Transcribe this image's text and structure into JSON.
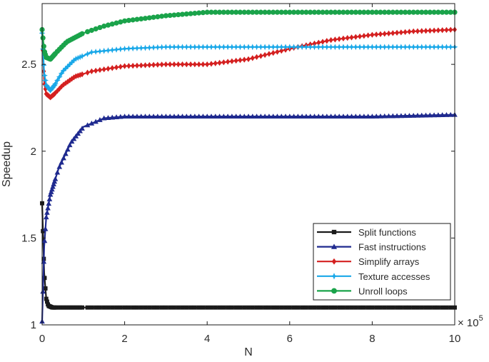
{
  "chart_data": {
    "type": "line",
    "xlabel": "N",
    "ylabel": "Speedup",
    "x_exponent_label": "× 10",
    "x_exponent_power": "5",
    "xlim": [
      0,
      10
    ],
    "ylim": [
      1,
      2.85
    ],
    "xticks": [
      0,
      2,
      4,
      6,
      8,
      10
    ],
    "yticks": [
      1,
      1.5,
      2,
      2.5
    ],
    "xtick_labels": [
      "0",
      "2",
      "4",
      "6",
      "8",
      "10"
    ],
    "ytick_labels": [
      "1",
      "1.5",
      "2",
      "2.5"
    ],
    "legend_position": "lower-right",
    "series": [
      {
        "name": "Split functions",
        "color": "#1a1a1a",
        "marker": "square",
        "x": [
          0,
          0.05,
          0.1,
          0.15,
          0.25,
          0.5,
          1,
          2,
          4,
          6,
          8,
          10
        ],
        "y": [
          1.7,
          1.3,
          1.15,
          1.11,
          1.1,
          1.1,
          1.1,
          1.1,
          1.1,
          1.1,
          1.1,
          1.1
        ]
      },
      {
        "name": "Fast instructions",
        "color": "#1f2a8f",
        "marker": "triangle",
        "x": [
          0,
          0.05,
          0.1,
          0.2,
          0.4,
          0.7,
          1,
          1.5,
          2,
          3,
          4,
          6,
          8,
          10
        ],
        "y": [
          1.02,
          1.45,
          1.62,
          1.75,
          1.9,
          2.05,
          2.14,
          2.19,
          2.2,
          2.2,
          2.2,
          2.2,
          2.2,
          2.21
        ]
      },
      {
        "name": "Simplify arrays",
        "color": "#d42020",
        "marker": "diamond",
        "x": [
          0,
          0.05,
          0.1,
          0.2,
          0.3,
          0.5,
          0.8,
          1.2,
          2,
          3,
          4,
          5,
          6,
          7,
          8,
          9,
          10
        ],
        "y": [
          2.7,
          2.4,
          2.33,
          2.31,
          2.33,
          2.38,
          2.43,
          2.46,
          2.49,
          2.5,
          2.5,
          2.53,
          2.59,
          2.64,
          2.67,
          2.69,
          2.7
        ]
      },
      {
        "name": "Texture accesses",
        "color": "#1aa8e8",
        "marker": "star",
        "x": [
          0,
          0.05,
          0.1,
          0.2,
          0.3,
          0.5,
          0.8,
          1.2,
          2,
          3,
          4,
          6,
          8,
          10
        ],
        "y": [
          2.68,
          2.45,
          2.38,
          2.35,
          2.38,
          2.46,
          2.53,
          2.57,
          2.59,
          2.6,
          2.6,
          2.6,
          2.6,
          2.6
        ]
      },
      {
        "name": "Unroll loops",
        "color": "#1aa34a",
        "marker": "circle",
        "x": [
          0,
          0.05,
          0.1,
          0.2,
          0.35,
          0.6,
          1,
          1.5,
          2,
          3,
          4,
          6,
          8,
          10
        ],
        "y": [
          2.7,
          2.58,
          2.54,
          2.53,
          2.57,
          2.63,
          2.68,
          2.72,
          2.75,
          2.78,
          2.8,
          2.8,
          2.8,
          2.8
        ]
      }
    ]
  }
}
